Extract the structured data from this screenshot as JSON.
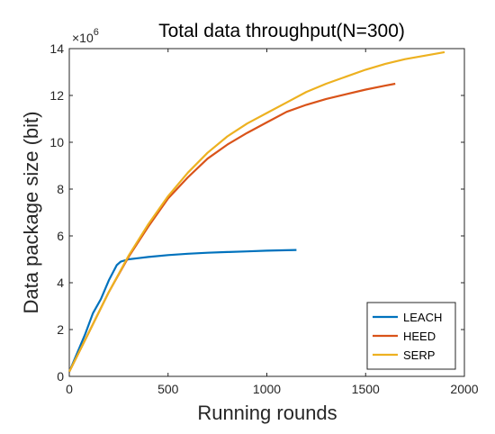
{
  "chart_data": {
    "type": "line",
    "title": "Total data throughput(N=300)",
    "xlabel": "Running rounds",
    "ylabel": "Data package size (bit)",
    "y_multiplier_base": "×10",
    "y_multiplier_exp": "6",
    "xlim": [
      0,
      2000
    ],
    "ylim": [
      0,
      14
    ],
    "xticks": [
      0,
      500,
      1000,
      1500,
      2000
    ],
    "yticks": [
      0,
      2,
      4,
      6,
      8,
      10,
      12,
      14
    ],
    "grid": false,
    "legend_position": "bottom-right",
    "series": [
      {
        "name": "LEACH",
        "color": "#0072BD",
        "x": [
          0,
          40,
          80,
          120,
          160,
          200,
          240,
          260,
          300,
          350,
          400,
          500,
          600,
          700,
          800,
          900,
          1000,
          1100,
          1150
        ],
        "y": [
          0.2,
          1.0,
          1.8,
          2.7,
          3.3,
          4.1,
          4.75,
          4.9,
          5.0,
          5.05,
          5.1,
          5.18,
          5.24,
          5.28,
          5.31,
          5.34,
          5.37,
          5.39,
          5.4
        ]
      },
      {
        "name": "HEED",
        "color": "#D95319",
        "x": [
          0,
          100,
          200,
          300,
          400,
          500,
          600,
          700,
          800,
          900,
          1000,
          1100,
          1200,
          1300,
          1400,
          1500,
          1600,
          1650
        ],
        "y": [
          0.2,
          1.9,
          3.6,
          5.1,
          6.4,
          7.6,
          8.5,
          9.3,
          9.9,
          10.4,
          10.85,
          11.3,
          11.6,
          11.85,
          12.05,
          12.25,
          12.42,
          12.5
        ]
      },
      {
        "name": "SERP",
        "color": "#EDB120",
        "x": [
          0,
          100,
          200,
          300,
          400,
          500,
          600,
          700,
          800,
          900,
          1000,
          1100,
          1200,
          1300,
          1400,
          1500,
          1600,
          1700,
          1800,
          1900
        ],
        "y": [
          0.2,
          1.9,
          3.6,
          5.15,
          6.5,
          7.7,
          8.7,
          9.55,
          10.25,
          10.8,
          11.25,
          11.7,
          12.15,
          12.5,
          12.8,
          13.1,
          13.35,
          13.55,
          13.7,
          13.85
        ]
      }
    ]
  }
}
